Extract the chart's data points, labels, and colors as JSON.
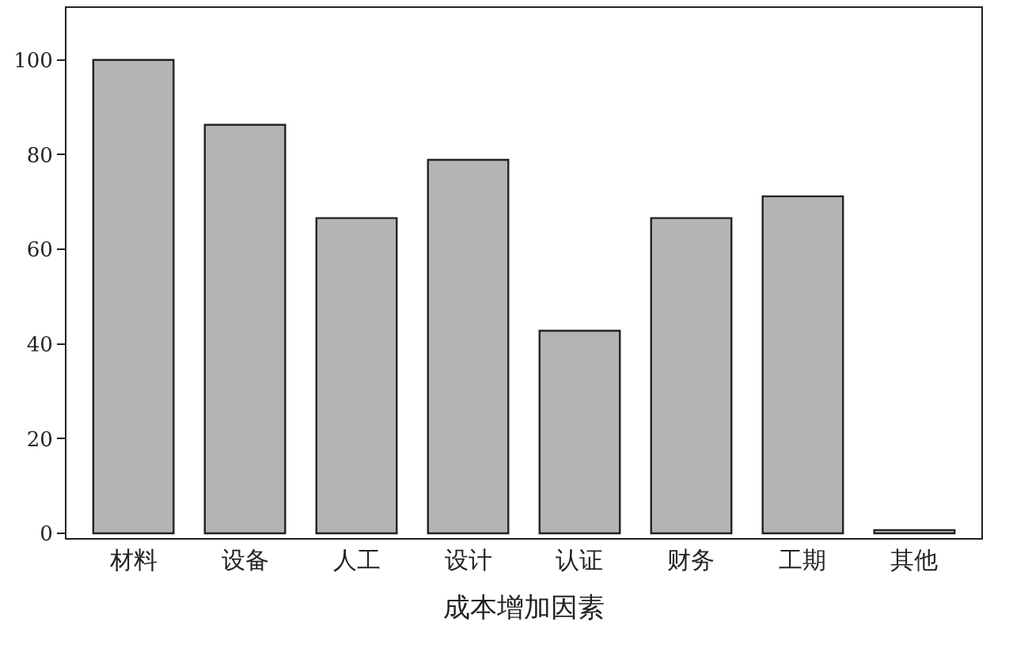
{
  "chart_data": {
    "type": "bar",
    "xlabel": "成本增加因素",
    "categories": [
      "材料",
      "设备",
      "人工",
      "设计",
      "认证",
      "财务",
      "工期",
      "其他"
    ],
    "values": [
      100,
      86.3,
      66.6,
      78.9,
      42.8,
      66.6,
      71.2,
      0.7
    ],
    "color": "#b4b4b4",
    "ylim": [
      -1,
      111
    ],
    "yticks": [
      0,
      20,
      40,
      60,
      80,
      100
    ],
    "legend": false
  }
}
